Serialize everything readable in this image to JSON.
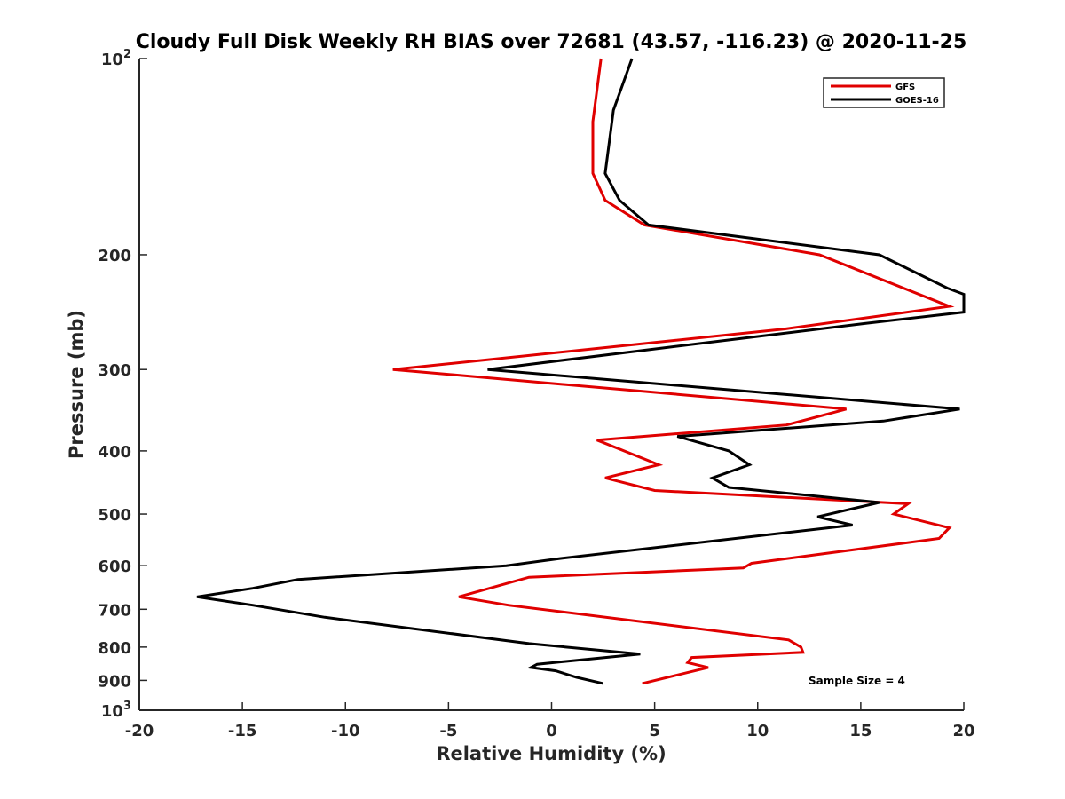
{
  "chart_data": {
    "type": "line",
    "title": "Cloudy Full Disk Weekly RH BIAS over 72681 (43.57, -116.23) @ 2020-11-25",
    "xlabel": "Relative Humidity (%)",
    "ylabel": "Pressure (mb)",
    "xlim": [
      -20,
      20
    ],
    "ylim": [
      100,
      1000
    ],
    "yscale": "log",
    "y_reversed": true,
    "x_ticks": [
      "-20",
      "-15",
      "-10",
      "-5",
      "0",
      "5",
      "10",
      "15",
      "20"
    ],
    "y_ticks": [
      {
        "value": 100,
        "base": "10",
        "exp": "2"
      },
      {
        "value": 200,
        "label": "200"
      },
      {
        "value": 300,
        "label": "300"
      },
      {
        "value": 400,
        "label": "400"
      },
      {
        "value": 500,
        "label": "500"
      },
      {
        "value": 600,
        "label": "600"
      },
      {
        "value": 700,
        "label": "700"
      },
      {
        "value": 800,
        "label": "800"
      },
      {
        "value": 900,
        "label": "900"
      },
      {
        "value": 1000,
        "base": "10",
        "exp": "3"
      }
    ],
    "grid": false,
    "legend_position": "top-right",
    "annotation": "Sample Size = 4",
    "series": [
      {
        "name": "GFS",
        "color": "#e00000",
        "points": [
          [
            2.4,
            100
          ],
          [
            2.0,
            125
          ],
          [
            2.0,
            150
          ],
          [
            2.6,
            165
          ],
          [
            4.5,
            180
          ],
          [
            13.0,
            200
          ],
          [
            19.3,
            240
          ],
          [
            11.3,
            260
          ],
          [
            -7.7,
            300
          ],
          [
            14.3,
            345
          ],
          [
            11.4,
            365
          ],
          [
            2.2,
            385
          ],
          [
            5.2,
            420
          ],
          [
            2.6,
            440
          ],
          [
            5.0,
            460
          ],
          [
            17.3,
            482
          ],
          [
            16.6,
            500
          ],
          [
            19.3,
            525
          ],
          [
            18.8,
            545
          ],
          [
            9.7,
            595
          ],
          [
            9.3,
            605
          ],
          [
            -1.1,
            625
          ],
          [
            -4.5,
            670
          ],
          [
            -2.1,
            690
          ],
          [
            11.5,
            780
          ],
          [
            12.1,
            800
          ],
          [
            12.2,
            815
          ],
          [
            6.8,
            830
          ],
          [
            6.6,
            845
          ],
          [
            7.6,
            860
          ],
          [
            4.4,
            910
          ]
        ]
      },
      {
        "name": "GOES-16",
        "color": "#000000",
        "points": [
          [
            3.9,
            100
          ],
          [
            3.0,
            120
          ],
          [
            2.6,
            150
          ],
          [
            3.3,
            165
          ],
          [
            4.7,
            180
          ],
          [
            15.9,
            200
          ],
          [
            19.2,
            225
          ],
          [
            20.0,
            230
          ],
          [
            20.0,
            245
          ],
          [
            15.2,
            255
          ],
          [
            4.6,
            280
          ],
          [
            -3.1,
            300
          ],
          [
            19.8,
            345
          ],
          [
            16.1,
            360
          ],
          [
            6.1,
            380
          ],
          [
            8.6,
            400
          ],
          [
            9.6,
            420
          ],
          [
            7.8,
            440
          ],
          [
            8.6,
            455
          ],
          [
            15.9,
            480
          ],
          [
            12.9,
            505
          ],
          [
            14.6,
            520
          ],
          [
            0.4,
            585
          ],
          [
            -2.2,
            600
          ],
          [
            -12.3,
            630
          ],
          [
            -14.5,
            650
          ],
          [
            -17.2,
            670
          ],
          [
            -14.5,
            690
          ],
          [
            -11.0,
            720
          ],
          [
            -1.1,
            790
          ],
          [
            4.3,
            820
          ],
          [
            -0.7,
            850
          ],
          [
            -1.0,
            860
          ],
          [
            0.2,
            870
          ],
          [
            1.2,
            890
          ],
          [
            2.5,
            910
          ]
        ]
      }
    ]
  }
}
